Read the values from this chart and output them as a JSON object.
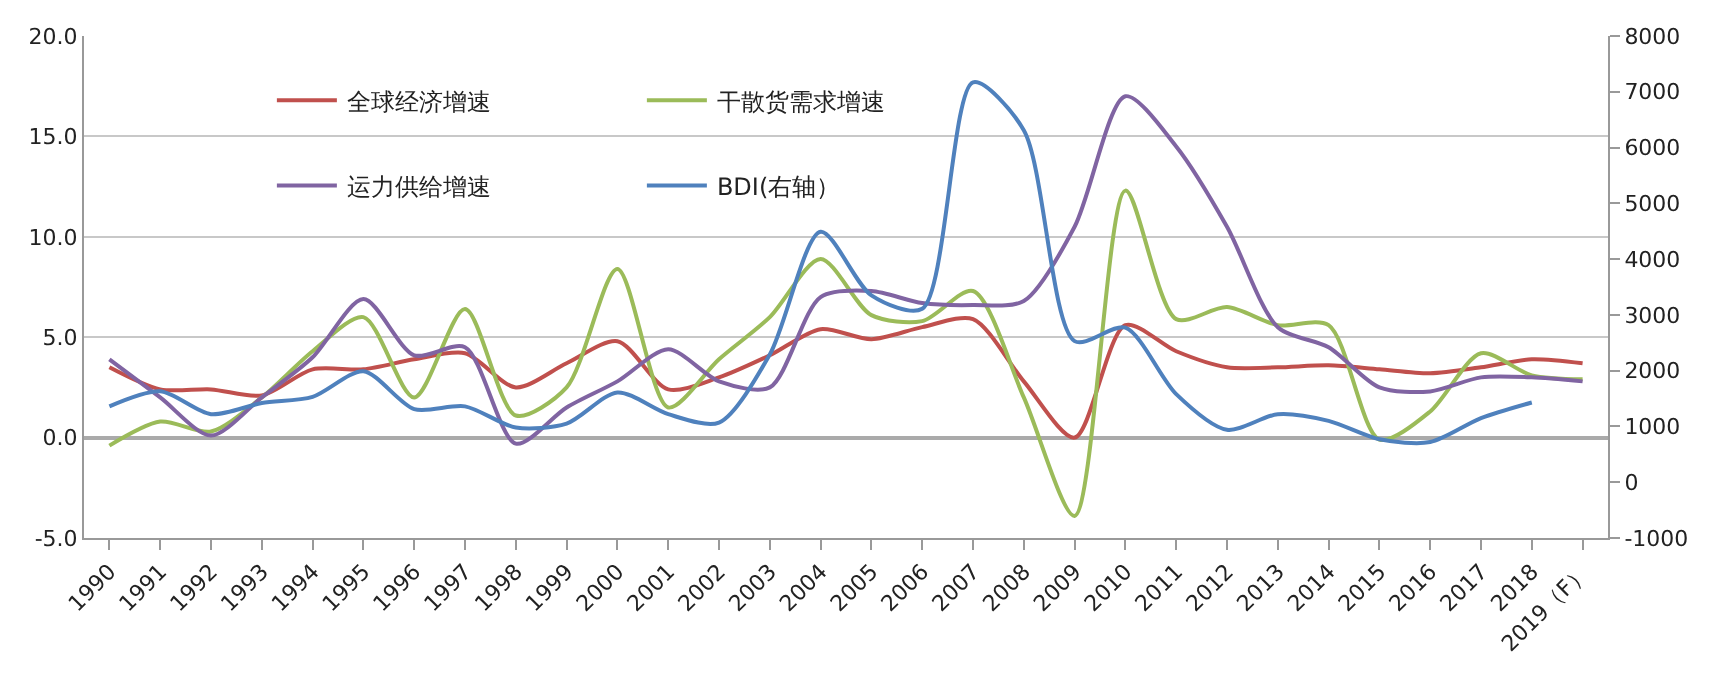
{
  "chart_data": {
    "type": "line",
    "categories": [
      "1990",
      "1991",
      "1992",
      "1993",
      "1994",
      "1995",
      "1996",
      "1997",
      "1998",
      "1999",
      "2000",
      "2001",
      "2002",
      "2003",
      "2004",
      "2005",
      "2006",
      "2007",
      "2008",
      "2009",
      "2010",
      "2011",
      "2012",
      "2013",
      "2014",
      "2015",
      "2016",
      "2017",
      "2018",
      "2019（F）"
    ],
    "series": [
      {
        "name": "全球经济增速",
        "color": "#c0504d",
        "values": [
          3.5,
          2.4,
          2.4,
          2.1,
          3.4,
          3.4,
          3.9,
          4.2,
          2.5,
          3.7,
          4.8,
          2.4,
          3.0,
          4.1,
          5.4,
          4.9,
          5.5,
          5.9,
          2.8,
          0.0,
          5.6,
          4.3,
          3.5,
          3.5,
          3.6,
          3.4,
          3.2,
          3.5,
          3.9,
          3.7
        ]
      },
      {
        "name": "干散货需求增速",
        "color": "#9bbb59",
        "values": [
          -0.4,
          0.8,
          0.3,
          2.0,
          4.3,
          6.0,
          2.0,
          6.4,
          1.1,
          2.5,
          8.4,
          1.5,
          3.9,
          6.0,
          8.9,
          6.1,
          5.8,
          7.3,
          2.0,
          -3.9,
          12.3,
          5.9,
          6.5,
          5.6,
          5.6,
          -0.1,
          1.3,
          4.2,
          3.1,
          2.9
        ]
      },
      {
        "name": "运力供给增速",
        "color": "#8064a2",
        "values": [
          3.9,
          2.0,
          0.1,
          2.0,
          4.0,
          6.9,
          4.1,
          4.5,
          -0.3,
          1.5,
          2.8,
          4.4,
          2.8,
          2.5,
          7.0,
          7.3,
          6.7,
          6.6,
          6.8,
          10.5,
          17.0,
          14.5,
          10.5,
          5.5,
          4.5,
          2.5,
          2.3,
          3.0,
          3.0,
          2.8
        ]
      },
      {
        "name": "BDI(右轴）",
        "color": "#4f81bd",
        "axis": "y2",
        "values": [
          1360,
          1630,
          1220,
          1420,
          1530,
          1990,
          1310,
          1360,
          980,
          1050,
          1610,
          1220,
          1070,
          2290,
          4490,
          3350,
          3110,
          7170,
          6310,
          2530,
          2770,
          1580,
          940,
          1220,
          1100,
          770,
          720,
          1150,
          1430,
          null
        ]
      }
    ],
    "ylim": [
      -5,
      20
    ],
    "yticks": [
      {
        "value": -5,
        "label": "-5.0"
      },
      {
        "value": 0,
        "label": "0.0"
      },
      {
        "value": 5,
        "label": "5.0"
      },
      {
        "value": 10,
        "label": "10.0"
      },
      {
        "value": 15,
        "label": "15.0"
      },
      {
        "value": 20,
        "label": "20.0"
      }
    ],
    "y2lim": [
      -1000,
      8000
    ],
    "y2ticks": [
      -1000,
      0,
      1000,
      2000,
      3000,
      4000,
      5000,
      6000,
      7000,
      8000
    ],
    "grid": "y",
    "legend": "top left",
    "marker": "none",
    "line_style": "solid"
  }
}
